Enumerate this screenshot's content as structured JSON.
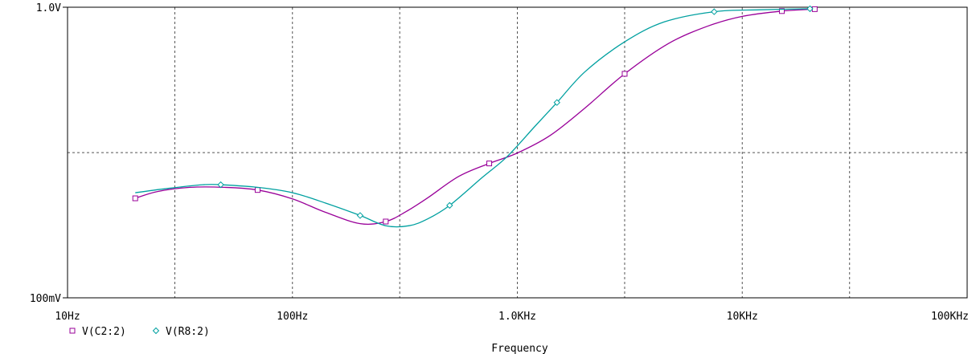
{
  "chart_data": {
    "type": "line",
    "x_scale": "log",
    "y_scale": "log",
    "xlim": [
      10,
      100000
    ],
    "ylim": [
      0.1,
      1.0
    ],
    "xlabel": "Frequency",
    "ylabel": "",
    "x_tick_values": [
      10,
      100,
      1000,
      10000,
      100000
    ],
    "x_tick_labels": [
      "10Hz",
      "100Hz",
      "1.0KHz",
      "10KHz",
      "100KHz"
    ],
    "y_tick_values": [
      0.1,
      1.0
    ],
    "y_tick_labels": [
      "100mV",
      "1.0V"
    ],
    "x_grid_values": [
      30,
      100,
      300,
      1000,
      3000,
      10000,
      30000
    ],
    "y_grid_values": [
      0.316
    ],
    "grid": true,
    "legend_position": "bottom-left",
    "series": [
      {
        "name": "V(C2:2)",
        "color": "#990099",
        "marker": "square",
        "x": [
          20,
          25,
          35,
          50,
          70,
          100,
          140,
          200,
          260,
          320,
          400,
          550,
          750,
          1000,
          1400,
          2000,
          3000,
          4700,
          7000,
          10000,
          15000,
          21000
        ],
        "y": [
          0.22,
          0.232,
          0.24,
          0.24,
          0.235,
          0.219,
          0.197,
          0.18,
          0.183,
          0.198,
          0.221,
          0.262,
          0.29,
          0.315,
          0.362,
          0.45,
          0.59,
          0.75,
          0.86,
          0.93,
          0.97,
          0.985
        ]
      },
      {
        "name": "V(R8:2)",
        "color": "#00a0a0",
        "marker": "diamond",
        "x": [
          20,
          28,
          40,
          48,
          70,
          100,
          140,
          200,
          260,
          330,
          400,
          500,
          700,
          900,
          1200,
          1500,
          2000,
          3000,
          4500,
          7500,
          12000,
          20000
        ],
        "y": [
          0.23,
          0.238,
          0.245,
          0.245,
          0.24,
          0.23,
          0.212,
          0.192,
          0.177,
          0.177,
          0.187,
          0.208,
          0.26,
          0.306,
          0.39,
          0.47,
          0.6,
          0.76,
          0.89,
          0.965,
          0.98,
          0.988
        ]
      }
    ]
  }
}
